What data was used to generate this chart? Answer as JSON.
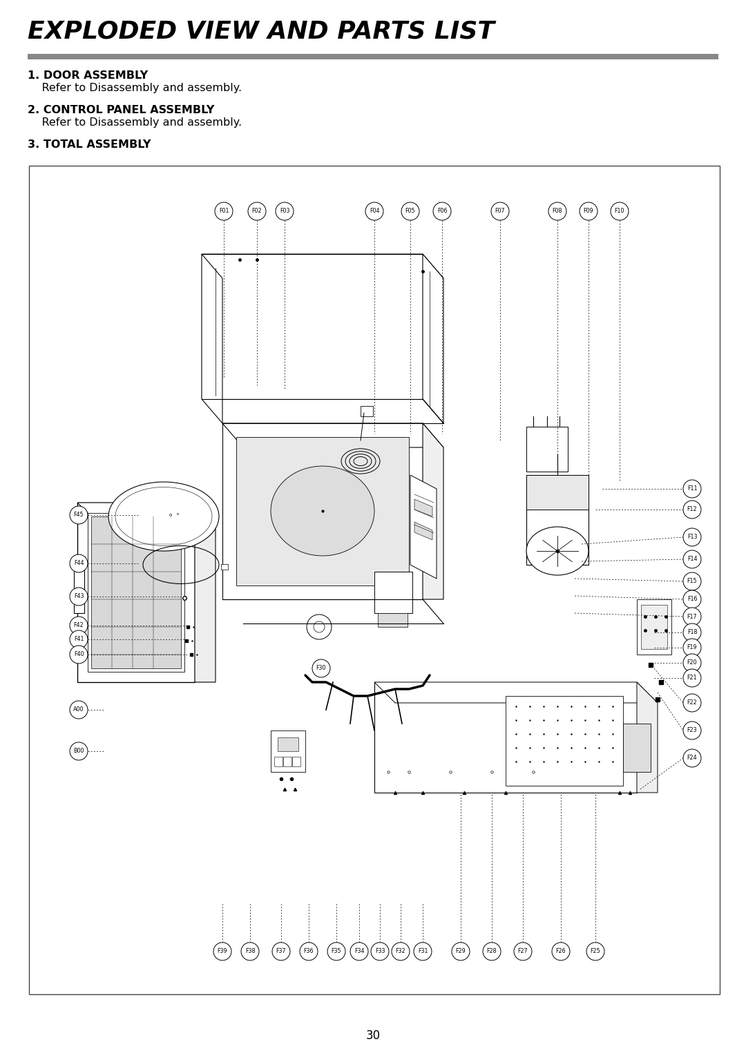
{
  "title": "EXPLODED VIEW AND PARTS LIST",
  "title_fontsize": 26,
  "title_style": "italic",
  "title_weight": "bold",
  "separator_color": "#888888",
  "section1_bold": "1. DOOR ASSEMBLY",
  "section1_sub": "    Refer to Disassembly and assembly.",
  "section2_bold": "2. CONTROL PANEL ASSEMBLY",
  "section2_sub": "    Refer to Disassembly and assembly.",
  "section3_bold": "3. TOTAL ASSEMBLY",
  "body_fontsize": 11.5,
  "page_number": "30",
  "background": "#ffffff",
  "text_color": "#000000",
  "line_color": "#000000",
  "part_labels_top": [
    "F01",
    "F02",
    "F03",
    "F04",
    "F05",
    "F06",
    "F07",
    "F08",
    "F09",
    "F10"
  ],
  "part_labels_right": [
    "F11",
    "F12",
    "F13",
    "F14",
    "F15",
    "F16",
    "F17",
    "F18",
    "F19",
    "F20",
    "F21",
    "F22",
    "F23",
    "F24"
  ],
  "part_labels_bottom_left": [
    "F39",
    "F38",
    "F37",
    "F36",
    "F35",
    "F34",
    "F33",
    "F32",
    "F31"
  ],
  "part_labels_bottom_right": [
    "F29",
    "F28",
    "F27",
    "F26",
    "F25"
  ],
  "part_labels_left": [
    "F45",
    "F44",
    "F43",
    "F42",
    "F41",
    "F40",
    "A00",
    "B00"
  ],
  "part_label_F30": "F30"
}
